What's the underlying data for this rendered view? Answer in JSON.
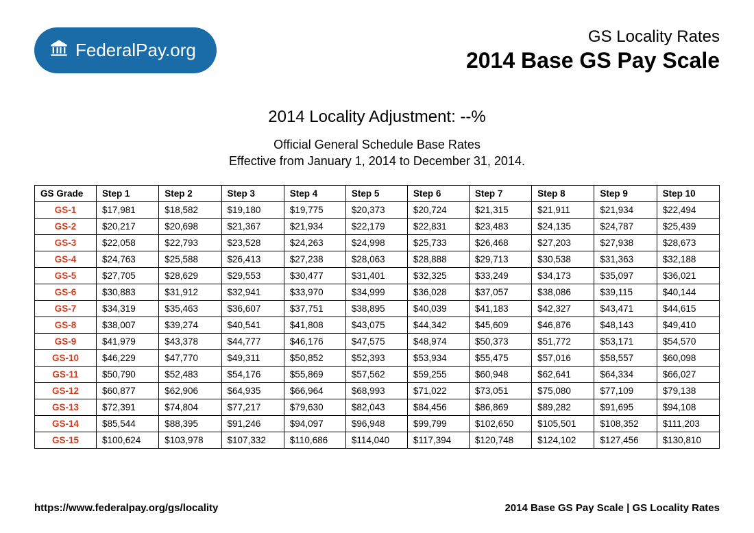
{
  "logo": {
    "bold": "Federal",
    "light": "Pay.org"
  },
  "header": {
    "subtitle": "GS Locality Rates",
    "title": "2014 Base GS Pay Scale"
  },
  "center": {
    "adjustment": "2014 Locality Adjustment: --%",
    "line1": "Official General Schedule Base Rates",
    "line2": "Effective from January 1, 2014 to December 31, 2014."
  },
  "table": {
    "columns": [
      "GS Grade",
      "Step 1",
      "Step 2",
      "Step 3",
      "Step 4",
      "Step 5",
      "Step 6",
      "Step 7",
      "Step 8",
      "Step 9",
      "Step 10"
    ],
    "rows": [
      {
        "grade": "GS-1",
        "cells": [
          "$17,981",
          "$18,582",
          "$19,180",
          "$19,775",
          "$20,373",
          "$20,724",
          "$21,315",
          "$21,911",
          "$21,934",
          "$22,494"
        ]
      },
      {
        "grade": "GS-2",
        "cells": [
          "$20,217",
          "$20,698",
          "$21,367",
          "$21,934",
          "$22,179",
          "$22,831",
          "$23,483",
          "$24,135",
          "$24,787",
          "$25,439"
        ]
      },
      {
        "grade": "GS-3",
        "cells": [
          "$22,058",
          "$22,793",
          "$23,528",
          "$24,263",
          "$24,998",
          "$25,733",
          "$26,468",
          "$27,203",
          "$27,938",
          "$28,673"
        ]
      },
      {
        "grade": "GS-4",
        "cells": [
          "$24,763",
          "$25,588",
          "$26,413",
          "$27,238",
          "$28,063",
          "$28,888",
          "$29,713",
          "$30,538",
          "$31,363",
          "$32,188"
        ]
      },
      {
        "grade": "GS-5",
        "cells": [
          "$27,705",
          "$28,629",
          "$29,553",
          "$30,477",
          "$31,401",
          "$32,325",
          "$33,249",
          "$34,173",
          "$35,097",
          "$36,021"
        ]
      },
      {
        "grade": "GS-6",
        "cells": [
          "$30,883",
          "$31,912",
          "$32,941",
          "$33,970",
          "$34,999",
          "$36,028",
          "$37,057",
          "$38,086",
          "$39,115",
          "$40,144"
        ]
      },
      {
        "grade": "GS-7",
        "cells": [
          "$34,319",
          "$35,463",
          "$36,607",
          "$37,751",
          "$38,895",
          "$40,039",
          "$41,183",
          "$42,327",
          "$43,471",
          "$44,615"
        ]
      },
      {
        "grade": "GS-8",
        "cells": [
          "$38,007",
          "$39,274",
          "$40,541",
          "$41,808",
          "$43,075",
          "$44,342",
          "$45,609",
          "$46,876",
          "$48,143",
          "$49,410"
        ]
      },
      {
        "grade": "GS-9",
        "cells": [
          "$41,979",
          "$43,378",
          "$44,777",
          "$46,176",
          "$47,575",
          "$48,974",
          "$50,373",
          "$51,772",
          "$53,171",
          "$54,570"
        ]
      },
      {
        "grade": "GS-10",
        "cells": [
          "$46,229",
          "$47,770",
          "$49,311",
          "$50,852",
          "$52,393",
          "$53,934",
          "$55,475",
          "$57,016",
          "$58,557",
          "$60,098"
        ]
      },
      {
        "grade": "GS-11",
        "cells": [
          "$50,790",
          "$52,483",
          "$54,176",
          "$55,869",
          "$57,562",
          "$59,255",
          "$60,948",
          "$62,641",
          "$64,334",
          "$66,027"
        ]
      },
      {
        "grade": "GS-12",
        "cells": [
          "$60,877",
          "$62,906",
          "$64,935",
          "$66,964",
          "$68,993",
          "$71,022",
          "$73,051",
          "$75,080",
          "$77,109",
          "$79,138"
        ]
      },
      {
        "grade": "GS-13",
        "cells": [
          "$72,391",
          "$74,804",
          "$77,217",
          "$79,630",
          "$82,043",
          "$84,456",
          "$86,869",
          "$89,282",
          "$91,695",
          "$94,108"
        ]
      },
      {
        "grade": "GS-14",
        "cells": [
          "$85,544",
          "$88,395",
          "$91,246",
          "$94,097",
          "$96,948",
          "$99,799",
          "$102,650",
          "$105,501",
          "$108,352",
          "$111,203"
        ]
      },
      {
        "grade": "GS-15",
        "cells": [
          "$100,624",
          "$103,978",
          "$107,332",
          "$110,686",
          "$114,040",
          "$117,394",
          "$120,748",
          "$124,102",
          "$127,456",
          "$130,810"
        ]
      }
    ],
    "grade_color": "#cc3d1f",
    "border_color": "#000000",
    "font_size": 13.5
  },
  "footer": {
    "left": "https://www.federalpay.org/gs/locality",
    "right": "2014 Base GS Pay Scale | GS Locality Rates"
  },
  "colors": {
    "logo_bg": "#1a6ca8",
    "logo_fg": "#ffffff",
    "page_bg": "#ffffff",
    "text": "#000000"
  }
}
